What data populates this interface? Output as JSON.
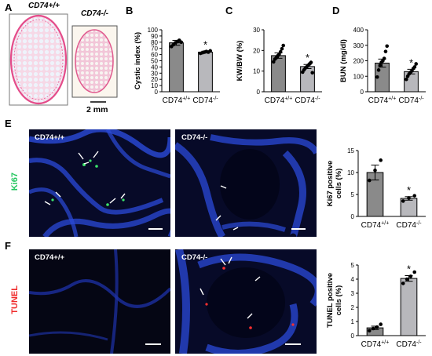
{
  "panel_letters": {
    "a": "A",
    "b": "B",
    "c": "C",
    "d": "D",
    "e": "E",
    "f": "F"
  },
  "panel_a": {
    "left_label": "CD74+/+",
    "right_label": "CD74-/-",
    "scale_text": "2 mm"
  },
  "panel_e": {
    "stain_label": "Ki67",
    "stain_color": "#22c55e",
    "left_label": "CD74+/+",
    "right_label": "CD74-/-"
  },
  "panel_f": {
    "stain_label": "TUNEL",
    "stain_color": "#ef2a2a",
    "left_label": "CD74+/+",
    "right_label": "CD74-/-"
  },
  "colors": {
    "wt_bar": "#8a8a8a",
    "ko_bar": "#b8b8bc",
    "cortex_pink": "#e44c8a",
    "micro_bg": "#070a28",
    "nuclei": "#2840c8"
  },
  "chart_data": [
    {
      "id": "B",
      "type": "bar",
      "categories": [
        "CD74+/+",
        "CD74-/-"
      ],
      "values": [
        79,
        64
      ],
      "errors": [
        4,
        1.5
      ],
      "ylabel": "Cystic index (%)",
      "ylim": [
        0,
        100
      ],
      "yticks": [
        0,
        10,
        20,
        30,
        40,
        50,
        60,
        70,
        80,
        90,
        100
      ],
      "significance": [
        "",
        "*"
      ],
      "points": [
        [
          73,
          76,
          79,
          81,
          83,
          80
        ],
        [
          62,
          63,
          64,
          65,
          64,
          66
        ]
      ]
    },
    {
      "id": "C",
      "type": "bar",
      "categories": [
        "CD74+/+",
        "CD74-/-"
      ],
      "values": [
        17.5,
        12.2
      ],
      "errors": [
        1.3,
        1.0
      ],
      "ylabel": "KW/BW (%)",
      "ylim": [
        0,
        30
      ],
      "yticks": [
        0,
        10,
        20,
        30
      ],
      "significance": [
        "",
        "*"
      ],
      "points": [
        [
          14.5,
          15.8,
          16.5,
          17.4,
          18.2,
          19.3,
          20.8,
          22.4
        ],
        [
          9.5,
          10.6,
          11.5,
          12.1,
          12.8,
          13.5,
          14.2,
          9.2
        ]
      ]
    },
    {
      "id": "D",
      "type": "bar",
      "categories": [
        "CD74+/+",
        "CD74-/-"
      ],
      "values": [
        185,
        130
      ],
      "errors": [
        26,
        15
      ],
      "ylabel": "BUN (mg/dl)",
      "ylim": [
        0,
        400
      ],
      "yticks": [
        0,
        100,
        200,
        300,
        400
      ],
      "significance": [
        "",
        "*"
      ],
      "points": [
        [
          95,
          140,
          170,
          190,
          200,
          215,
          260,
          295
        ],
        [
          80,
          100,
          115,
          125,
          135,
          150,
          160,
          180
        ]
      ]
    },
    {
      "id": "E",
      "type": "bar",
      "categories": [
        "CD74+/+",
        "CD74-/-"
      ],
      "values": [
        10,
        4.1
      ],
      "errors": [
        1.7,
        0.4
      ],
      "ylabel": "Ki67 positive cells (%)",
      "ylim": [
        0,
        15
      ],
      "yticks": [
        0,
        5,
        10,
        15
      ],
      "significance": [
        "",
        "*"
      ],
      "points": [
        [
          8.2,
          10.5,
          12.8
        ],
        [
          3.5,
          4.2,
          4.7
        ]
      ]
    },
    {
      "id": "F",
      "type": "bar",
      "categories": [
        "CD74+/+",
        "CD74-/-"
      ],
      "values": [
        0.55,
        4.05
      ],
      "errors": [
        0.12,
        0.2
      ],
      "ylabel": "TUNEL positive cells (%)",
      "ylim": [
        0,
        5
      ],
      "yticks": [
        0,
        1,
        2,
        3,
        4,
        5
      ],
      "significance": [
        "",
        "*"
      ],
      "points": [
        [
          0.35,
          0.5,
          0.6,
          0.8
        ],
        [
          3.7,
          4.0,
          4.2,
          4.5
        ]
      ]
    }
  ]
}
